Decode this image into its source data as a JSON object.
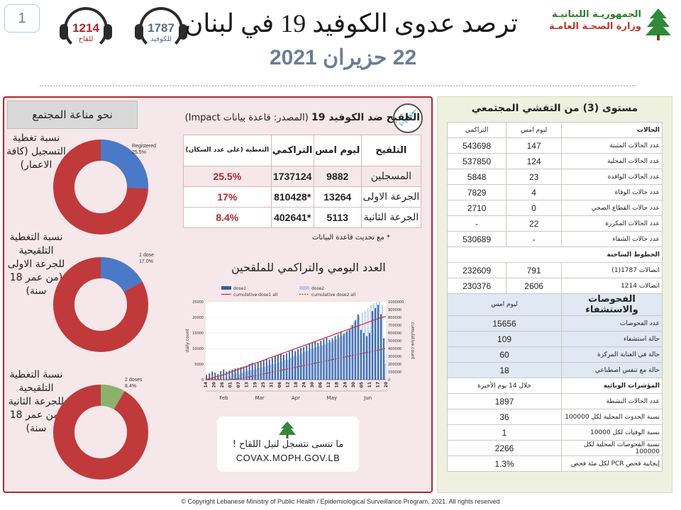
{
  "page_number": "1",
  "header": {
    "vaccine_hotline": {
      "number": "1214",
      "label": "للقاح"
    },
    "covid_hotline": {
      "number": "1787",
      "label": "للكوفيد"
    },
    "title": "ترصد عدوى الكوفيد 19 في لبنان",
    "date": "22 حزيران 2021",
    "ministry_line1": "الجمهوريـة اللبنانيـة",
    "ministry_line2": "وزارة الصحـة العامـة"
  },
  "left_panel": {
    "immunity_title": "نحو مناعة المجتمع",
    "donuts": [
      {
        "label": "نسبة تغطية التسجيل (كافة الاعمار)",
        "series_label": "Registered",
        "percent": 25.5,
        "percent_text": "25.5%",
        "fill_color": "#4a7ac7",
        "rest_color": "#c0393b"
      },
      {
        "label": "نسبة التغطية التلقيحية للجرعة الاولى (من عمر 18 سنة)",
        "series_label": "1 dose",
        "percent": 17.0,
        "percent_text": "17.0%",
        "fill_color": "#4a7ac7",
        "rest_color": "#c0393b"
      },
      {
        "label": "نسبة التغطية التلقيحية للجرعة الثانية (من عمر 18 سنة)",
        "series_label": "2 doses",
        "percent": 8.4,
        "percent_text": "8.4%",
        "fill_color": "#8bb26a",
        "rest_color": "#c0393b"
      }
    ],
    "section_title_bold": "التلقيح ضد الكوفيد 19",
    "section_title_rest": "(المصدر: قاعدة بيانات Impact)",
    "vax_table": {
      "headers": [
        "التلقيح",
        "ليوم امس",
        "التراكمي",
        "التغطية (على عدد السكان)"
      ],
      "rows": [
        [
          "المسجلين",
          "9882",
          "1737124",
          "25.5%"
        ],
        [
          "الجرعة الاولى",
          "13264",
          "*810428",
          "17%"
        ],
        [
          "الجرعة الثانية",
          "5113",
          "*402641",
          "8.4%"
        ]
      ]
    },
    "note": "* مع تحديث قاعدة البيانات",
    "chart_title": "العدد اليومي والتراكمي للملقحين",
    "covax_text": "ما تنسى تتسجل لنيل اللقاح !",
    "covax_url": "COVAX.MOPH.GOV.LB"
  },
  "chart_data": {
    "type": "bar",
    "title": "",
    "legend": [
      "dose1",
      "dose2",
      "cumulative dose1 all",
      "cumulative dose2 all"
    ],
    "legend_position": "top",
    "ylabel": "daily count",
    "y2label": "cumulative count",
    "ylim": [
      0,
      25000
    ],
    "y2lim": [
      0,
      1000000
    ],
    "yticks": [
      "0",
      "5000",
      "10000",
      "15000",
      "20000",
      "25000"
    ],
    "y2ticks": [
      "0",
      "100000",
      "200000",
      "300000",
      "400000",
      "500000",
      "600000",
      "700000",
      "800000",
      "900000",
      "1000000"
    ],
    "xticks": [
      "14",
      "20",
      "26",
      "01",
      "07",
      "13",
      "19",
      "25",
      "31",
      "06",
      "12",
      "18",
      "24",
      "30",
      "06",
      "12",
      "18",
      "24",
      "30",
      "05",
      "11",
      "17",
      "20"
    ],
    "months": [
      "Feb",
      "Mar",
      "Apr",
      "May",
      "Jun"
    ],
    "series": [
      {
        "name": "dose1",
        "values": [
          1500,
          2000,
          2600,
          2200,
          1800,
          2800,
          3300,
          2600,
          2900,
          3200,
          3600,
          3800,
          4000,
          4200,
          4500,
          5000,
          5400,
          5000,
          5600,
          6000,
          6300,
          6800,
          6500,
          7000,
          7500,
          8000,
          8300,
          8000,
          8500,
          9000,
          9500,
          9200,
          9800,
          10200,
          10500,
          11000,
          11500,
          12000,
          12200,
          11800,
          12500,
          13000,
          13500,
          12800,
          13300,
          14000,
          14500,
          15200,
          14800,
          15500,
          16000,
          17500,
          19000,
          21000,
          16000,
          15000,
          14000,
          15000,
          22000,
          23000,
          24000,
          21000,
          13264
        ]
      },
      {
        "name": "dose2",
        "values": [
          0,
          0,
          0,
          0,
          0,
          0,
          0,
          0,
          1000,
          2000,
          2000,
          1800,
          2200,
          2600,
          2800,
          3000,
          3200,
          3500,
          3800,
          4000,
          4200,
          4600,
          4800,
          5000,
          5200,
          5600,
          6000,
          6300,
          6500,
          7000,
          7500,
          7800,
          8000,
          8500,
          9000,
          9300,
          9800,
          10000,
          10500,
          10800,
          11000,
          11300,
          11800,
          12000,
          12500,
          13000,
          13500,
          14000,
          15000,
          16000,
          17500,
          18500,
          19500,
          20500,
          21500,
          22000,
          23000,
          24000,
          24500,
          24800,
          25000,
          24000,
          5113
        ]
      },
      {
        "name": "cumulative dose1 all",
        "values": [
          0,
          15000,
          30000,
          45000,
          60000,
          80000,
          100000,
          120000,
          140000,
          160000,
          180000,
          200000,
          220000,
          240000,
          260000,
          280000,
          300000,
          320000,
          340000,
          360000,
          380000,
          400000,
          420000,
          440000,
          460000,
          480000,
          500000,
          520000,
          540000,
          560000,
          580000,
          600000,
          620000,
          640000,
          660000,
          680000,
          700000,
          720000,
          740000,
          760000,
          780000,
          800000,
          810428
        ]
      },
      {
        "name": "cumulative dose2 all",
        "values": [
          0,
          0,
          0,
          0,
          0,
          5000,
          15000,
          25000,
          40000,
          55000,
          70000,
          85000,
          100000,
          115000,
          130000,
          145000,
          160000,
          175000,
          190000,
          205000,
          220000,
          235000,
          250000,
          265000,
          280000,
          295000,
          310000,
          325000,
          340000,
          355000,
          370000,
          385000,
          402641
        ]
      }
    ]
  },
  "right_panel": {
    "header": "مستوى (3) من التفشي المجتمعي",
    "cases_header": "الحالات",
    "col_yesterday": "ليوم امس",
    "col_cumulative": "التراكمي",
    "cases": [
      {
        "label": "عدد الحالات المثبتة",
        "yesterday": "147",
        "cumulative": "543698"
      },
      {
        "label": "عدد الحالات المحلية",
        "yesterday": "124",
        "cumulative": "537850"
      },
      {
        "label": "عدد الحالات الوافدة",
        "yesterday": "23",
        "cumulative": "5848"
      },
      {
        "label": "عدد حالات الوفاة",
        "yesterday": "4",
        "cumulative": "7829"
      },
      {
        "label": "عدد حالات القطاع الصحي",
        "yesterday": "0",
        "cumulative": "2710"
      },
      {
        "label": "عدد الحالات المكررة",
        "yesterday": "22",
        "cumulative": "-"
      },
      {
        "label": "عدد حالات الشفاء",
        "yesterday": "-",
        "cumulative": "530689"
      }
    ],
    "hotlines_header": "الخطوط الساخنة",
    "hotlines": [
      {
        "label": "اتصالات 1787(1)",
        "yesterday": "791",
        "cumulative": "232609"
      },
      {
        "label": "اتصالات 1214",
        "yesterday": "2606",
        "cumulative": "230376"
      }
    ],
    "tests_header": "الفحوصات والاستشفاء",
    "tests_col": "ليوم امس",
    "tests": [
      {
        "label": "عدد الفحوصات",
        "value": "15656"
      },
      {
        "label": "حالة استشفاء",
        "value": "109"
      },
      {
        "label": "حالة في العناية المركزة",
        "value": "60"
      },
      {
        "label": "حالة مع تنفس اصطناعي",
        "value": "18"
      }
    ],
    "epi_header": "المؤشرات الوبائية",
    "epi_col": "خلال 14 يوم الأخيرة",
    "epi": [
      {
        "label": "عدد الحالات النشطة",
        "value": "1897"
      },
      {
        "label": "نسبة الحدوث المحلية لكل 100000",
        "value": "36"
      },
      {
        "label": "نسبة الوفيات لكل 10000",
        "value": "1"
      },
      {
        "label": "نسبة الفحوصات المحلية لكل 100000",
        "value": "2266"
      },
      {
        "label": "إيجابية فحص PCR لكل مئة فحص",
        "value": "1.3%"
      }
    ]
  },
  "footer": "© Copyright Lebanese Ministry of Public Health / Epidemiological Surveillance Program, 2021. All rights reserved"
}
